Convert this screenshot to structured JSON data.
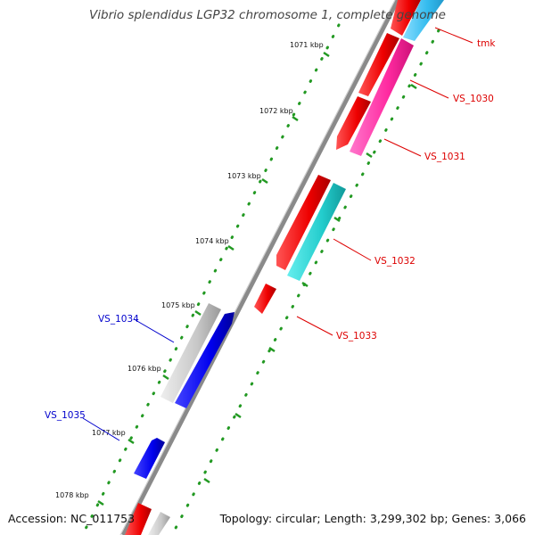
{
  "title": "Vibrio splendidus LGP32 chromosome 1, complete genome",
  "footer": {
    "accession": "Accession: NC_011753",
    "summary": "Topology: circular; Length: 3,299,302 bp; Genes: 3,066"
  },
  "scale_labels": [
    "1071 kbp",
    "1072 kbp",
    "1073 kbp",
    "1074 kbp",
    "1075 kbp",
    "1076 kbp",
    "1077 kbp",
    "1078 kbp"
  ],
  "colors": {
    "backbone": "#888888",
    "tick_dots": "#229922",
    "forward_label": "#dd0000",
    "reverse_label": "#0000cc",
    "red": "#ee0000",
    "pink": "#ff2aa0",
    "cyan": "#22cccc",
    "lightblue": "#33bbee",
    "blue": "#0000ee",
    "gray": "#c8c8c8"
  },
  "features": [
    {
      "id": "tmk",
      "label": "tmk",
      "color": "red",
      "strand": "forward"
    },
    {
      "id": "tmk_ext",
      "label": "",
      "color": "lightblue",
      "strand": "forward"
    },
    {
      "id": "VS_1030",
      "label": "VS_1030",
      "color": "red",
      "strand": "forward"
    },
    {
      "id": "VS_1031",
      "label": "VS_1031",
      "color": "pink",
      "strand": "forward"
    },
    {
      "id": "VS_1032",
      "label": "VS_1032",
      "color": "red",
      "strand": "forward"
    },
    {
      "id": "VS_1032_cds",
      "label": "",
      "color": "cyan",
      "strand": "forward"
    },
    {
      "id": "VS_1033",
      "label": "VS_1033",
      "color": "red",
      "strand": "forward"
    },
    {
      "id": "VS_1034",
      "label": "VS_1034",
      "color": "blue",
      "strand": "reverse"
    },
    {
      "id": "VS_1034_gray",
      "label": "",
      "color": "gray",
      "strand": "reverse"
    },
    {
      "id": "VS_1035",
      "label": "VS_1035",
      "color": "blue",
      "strand": "reverse"
    },
    {
      "id": "bottom_red",
      "label": "",
      "color": "red",
      "strand": "forward"
    },
    {
      "id": "bottom_gray",
      "label": "",
      "color": "gray",
      "strand": "forward"
    }
  ]
}
